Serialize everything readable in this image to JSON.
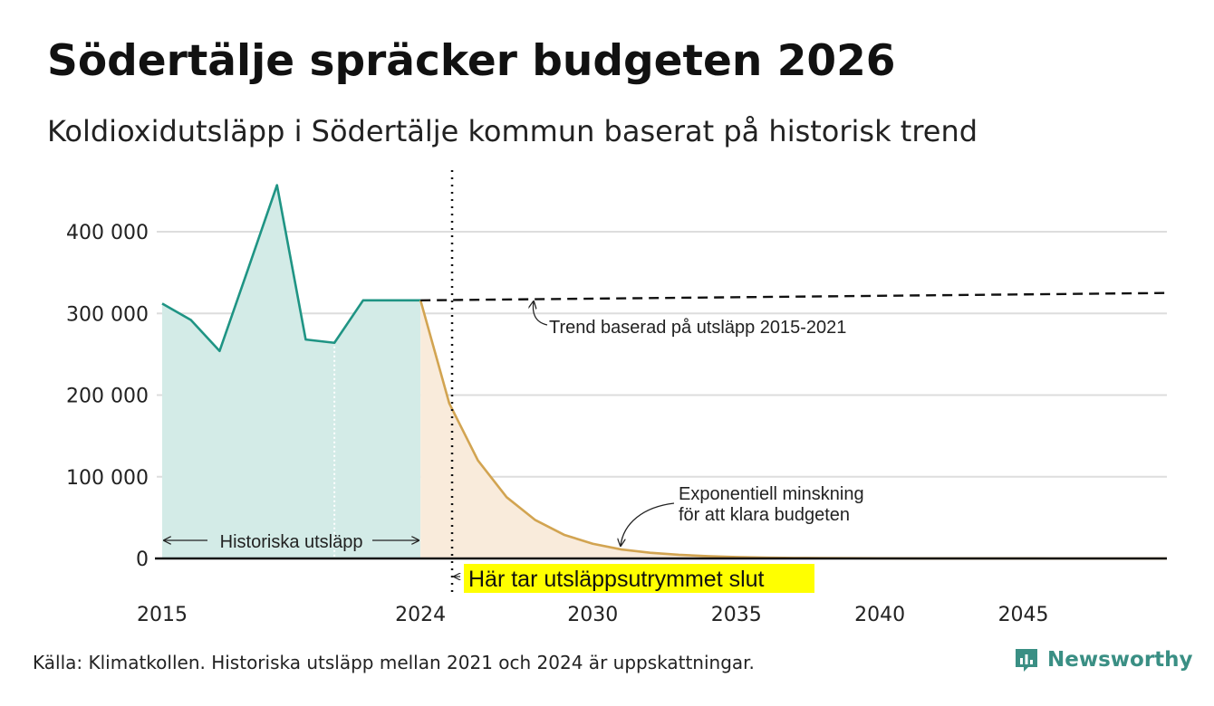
{
  "title": "Södertälje spräcker budgeten 2026",
  "subtitle": "Koldioxidutsläpp i Södertälje kommun baserat på historisk trend",
  "source": "Källa: Klimatkollen. Historiska utsläpp mellan 2021 och 2024 är uppskattningar.",
  "brand": {
    "name": "Newsworthy",
    "color": "#3a8f84"
  },
  "colors": {
    "historical_line": "#1f9484",
    "historical_fill": "#d3ebe7",
    "projection_line": "#d2a451",
    "projection_fill": "#f9ebdb",
    "highlight": "#ffff00",
    "grid": "#dddddd"
  },
  "chart_data": {
    "type": "area",
    "ylim": [
      0,
      450000
    ],
    "xlim": [
      2015,
      2050
    ],
    "y_ticks": [
      {
        "value": 0,
        "label": "0"
      },
      {
        "value": 100000,
        "label": "100 000"
      },
      {
        "value": 200000,
        "label": "200 000"
      },
      {
        "value": 300000,
        "label": "300 000"
      },
      {
        "value": 400000,
        "label": "400 000"
      }
    ],
    "x_ticks": [
      {
        "value": 2015,
        "label": "2015"
      },
      {
        "value": 2024,
        "label": "2024"
      },
      {
        "value": 2030,
        "label": "2030"
      },
      {
        "value": 2035,
        "label": "2035"
      },
      {
        "value": 2040,
        "label": "2040"
      },
      {
        "value": 2045,
        "label": "2045"
      }
    ],
    "grid": true,
    "series": [
      {
        "name": "Historiska utsläpp",
        "style": "solid-area",
        "x": [
          2015,
          2016,
          2017,
          2018,
          2019,
          2020,
          2021,
          2022,
          2023,
          2024
        ],
        "y": [
          312000,
          292000,
          254000,
          355000,
          457000,
          268000,
          264000,
          316000,
          316000,
          316000
        ]
      },
      {
        "name": "Exponentiell minskning för att klara budgeten",
        "style": "solid-area",
        "x": [
          2024,
          2025,
          2026,
          2027,
          2028,
          2029,
          2030,
          2031,
          2032,
          2033,
          2034,
          2035,
          2036,
          2037,
          2038,
          2039,
          2040,
          2042,
          2044,
          2046,
          2048,
          2050
        ],
        "y": [
          316000,
          190000,
          120000,
          75000,
          47000,
          29000,
          18000,
          11000,
          7000,
          4500,
          2800,
          1800,
          1100,
          700,
          450,
          300,
          200,
          80,
          30,
          10,
          5,
          2
        ]
      },
      {
        "name": "Trend baserad på utsläpp 2015-2021",
        "style": "dashed",
        "x": [
          2024,
          2050
        ],
        "y": [
          316000,
          325000
        ]
      }
    ],
    "estimate_from": 2021,
    "budget_end": 2025.1,
    "annotations": {
      "historical": "Historiska utsläpp",
      "trend": "Trend baserad på utsläpp 2015-2021",
      "exponential": [
        "Exponentiell minskning",
        "för att klara budgeten"
      ],
      "budget_end": "Här tar utsläppsutrymmet slut"
    }
  }
}
